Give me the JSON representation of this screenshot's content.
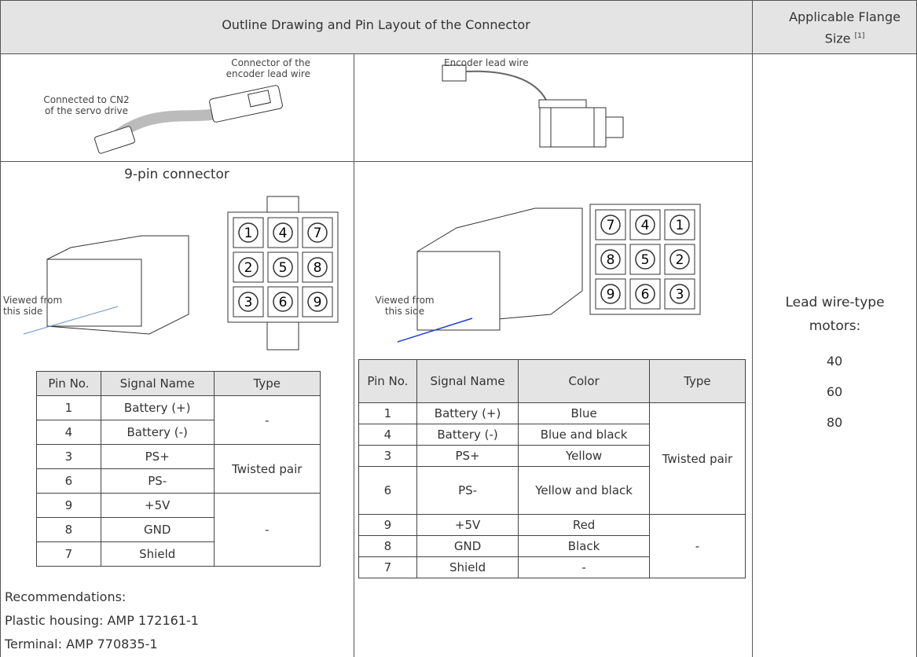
{
  "header": {
    "title": "Outline Drawing and Pin Layout of the Connector",
    "flange_title": "Applicable Flange Size",
    "flange_note": "[1]"
  },
  "drive_side": {
    "connector_label": "Connector of the encoder lead wire",
    "cn2_label": "Connected to CN2 of the servo drive"
  },
  "motor_side": {
    "lead_label": "Encoder lead wire"
  },
  "left": {
    "title": "9-pin connector",
    "view_label": "Viewed from this side",
    "pins": [
      "1",
      "4",
      "7",
      "2",
      "5",
      "8",
      "3",
      "6",
      "9"
    ],
    "table": {
      "headers": [
        "Pin No.",
        "Signal Name",
        "Type"
      ],
      "rows": [
        [
          "1",
          "Battery (+)",
          "-"
        ],
        [
          "4",
          "Battery (-)"
        ],
        [
          "3",
          "PS+",
          "Twisted pair"
        ],
        [
          "6",
          "PS-"
        ],
        [
          "9",
          "+5V",
          "-"
        ],
        [
          "8",
          "GND"
        ],
        [
          "7",
          "Shield"
        ]
      ]
    },
    "recommendations": [
      "Recommendations:",
      "Plastic housing: AMP 172161-1",
      "Terminal: AMP 770835-1"
    ]
  },
  "right": {
    "view_label": "Viewed from this side",
    "pins": [
      "7",
      "4",
      "1",
      "8",
      "5",
      "2",
      "9",
      "6",
      "3"
    ],
    "table": {
      "headers": [
        "Pin No.",
        "Signal Name",
        "Color",
        "Type"
      ],
      "rows": [
        [
          "1",
          "Battery (+)",
          "Blue",
          "Twisted pair"
        ],
        [
          "4",
          "Battery (-)",
          "Blue and black"
        ],
        [
          "3",
          "PS+",
          "Yellow"
        ],
        [
          "6",
          "PS-",
          "Yellow and black"
        ],
        [
          "9",
          "+5V",
          "Red",
          "-"
        ],
        [
          "8",
          "GND",
          "Black"
        ],
        [
          "7",
          "Shield",
          "-"
        ]
      ]
    }
  },
  "flange": {
    "label": "Lead wire-type motors:",
    "sizes": [
      "40",
      "60",
      "80"
    ]
  }
}
